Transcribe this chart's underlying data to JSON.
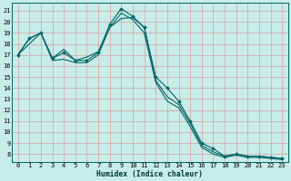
{
  "xlabel": "Humidex (Indice chaleur)",
  "bg_color": "#c8ece8",
  "line_color": "#006666",
  "grid_color": "#d4a0a0",
  "xlim": [
    -0.5,
    23.5
  ],
  "ylim": [
    7.3,
    21.7
  ],
  "xticks": [
    0,
    1,
    2,
    3,
    4,
    5,
    6,
    7,
    8,
    9,
    10,
    11,
    12,
    13,
    14,
    15,
    16,
    17,
    18,
    19,
    20,
    21,
    22,
    23
  ],
  "yticks": [
    8,
    9,
    10,
    11,
    12,
    13,
    14,
    15,
    16,
    17,
    18,
    19,
    20,
    21
  ],
  "line1_x": [
    0,
    1,
    2,
    3,
    4,
    5,
    6,
    7,
    8,
    9,
    10,
    11,
    12,
    13,
    14,
    15,
    16,
    17,
    18,
    19,
    20,
    21,
    22,
    23
  ],
  "line1_y": [
    17.0,
    18.5,
    19.0,
    16.7,
    17.2,
    16.5,
    16.5,
    17.2,
    19.8,
    21.2,
    20.5,
    19.5,
    15.0,
    14.0,
    12.8,
    11.0,
    9.0,
    8.5,
    7.8,
    8.0,
    7.8,
    7.8,
    7.7,
    7.6
  ],
  "line2_x": [
    0,
    1,
    2,
    3,
    4,
    5,
    6,
    7,
    8,
    9,
    10,
    11,
    12,
    13,
    14,
    15,
    16,
    17,
    18,
    19,
    20,
    21,
    22,
    23
  ],
  "line2_y": [
    17.0,
    18.5,
    19.0,
    16.7,
    17.5,
    16.5,
    16.8,
    17.3,
    19.5,
    20.3,
    20.4,
    19.5,
    14.7,
    13.2,
    12.5,
    10.8,
    8.8,
    8.2,
    7.8,
    8.0,
    7.8,
    7.8,
    7.7,
    7.6
  ],
  "line3_x": [
    0,
    1,
    2,
    3,
    4,
    5,
    6,
    7,
    8,
    9,
    10,
    11,
    12,
    13,
    14,
    15,
    16,
    17,
    18,
    19,
    20,
    21,
    22,
    23
  ],
  "line3_y": [
    17.0,
    18.0,
    19.0,
    16.5,
    16.6,
    16.3,
    16.3,
    17.0,
    19.5,
    20.8,
    20.2,
    19.0,
    14.5,
    12.8,
    12.2,
    10.5,
    8.6,
    8.0,
    7.7,
    7.9,
    7.7,
    7.7,
    7.6,
    7.5
  ]
}
